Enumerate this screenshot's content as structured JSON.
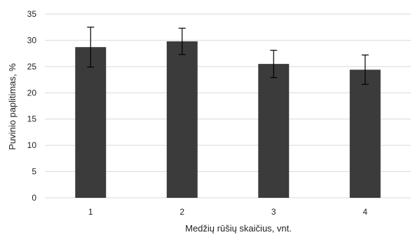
{
  "chart_data": {
    "type": "bar",
    "categories": [
      "1",
      "2",
      "3",
      "4"
    ],
    "values": [
      28.7,
      29.8,
      25.5,
      24.4
    ],
    "error": [
      3.8,
      2.5,
      2.6,
      2.8
    ],
    "xlabel": "Medžių rūšių skaičius, vnt.",
    "ylabel": "Puvinio paplitimas, %",
    "ylim": [
      0,
      35
    ],
    "yticks": [
      "0",
      "5",
      "10",
      "15",
      "20",
      "25",
      "30",
      "35"
    ],
    "grid": true,
    "bar_color": "#3b3b3b",
    "grid_color": "#d9d9d9"
  }
}
